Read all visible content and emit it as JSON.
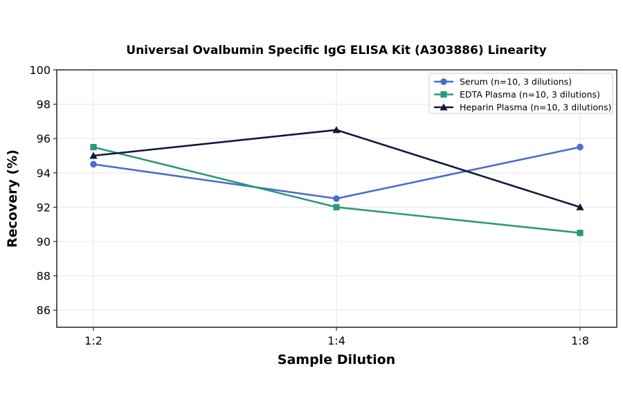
{
  "chart_data": {
    "type": "line",
    "title": "Universal Ovalbumin Specific IgG ELISA Kit (A303886) Linearity",
    "xlabel": "Sample Dilution",
    "ylabel": "Recovery (%)",
    "categories": [
      "1:2",
      "1:4",
      "1:8"
    ],
    "ylim": [
      85,
      100
    ],
    "yticks": [
      86,
      88,
      90,
      92,
      94,
      96,
      98,
      100
    ],
    "grid": true,
    "legend_position": "top-right",
    "series": [
      {
        "name": "Serum (n=10, 3 dilutions)",
        "values": [
          94.5,
          92.5,
          95.5
        ],
        "color": "#4a6bd0",
        "marker": "circle"
      },
      {
        "name": "EDTA Plasma (n=10, 3 dilutions)",
        "values": [
          95.5,
          92.0,
          90.5
        ],
        "color": "#2a9a77",
        "marker": "square"
      },
      {
        "name": "Heparin Plasma (n=10, 3 dilutions)",
        "values": [
          95.0,
          96.5,
          92.0
        ],
        "color": "#0f1a3c",
        "marker": "triangle"
      }
    ]
  }
}
